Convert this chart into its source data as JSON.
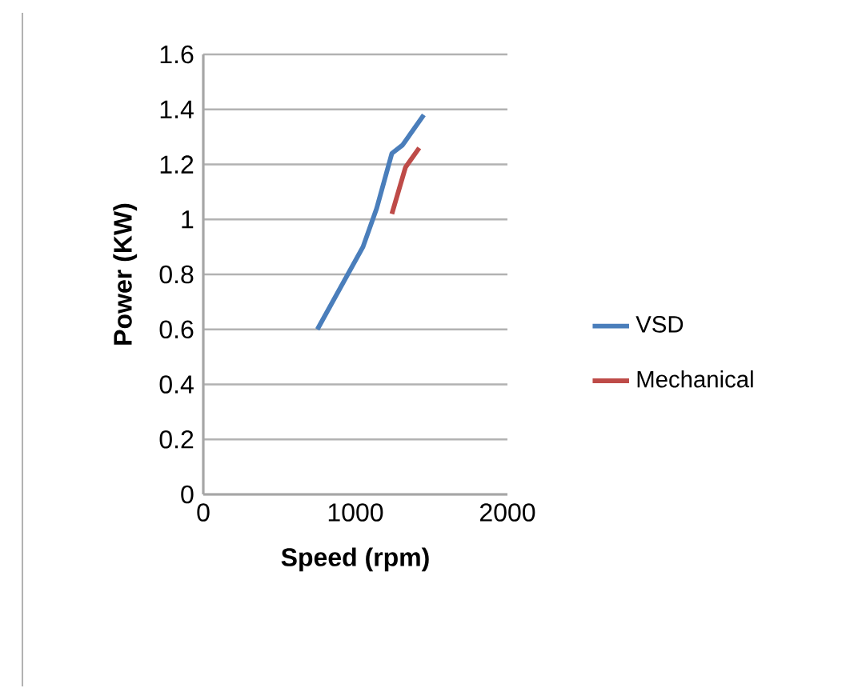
{
  "chart_data": {
    "type": "line",
    "xlabel": "Speed (rpm)",
    "ylabel": "Power (KW)",
    "xlim": [
      0,
      2000
    ],
    "xticks": [
      0,
      1000,
      2000
    ],
    "ylim": [
      0,
      1.6
    ],
    "yticks": [
      0,
      0.2,
      0.4,
      0.6,
      0.8,
      1,
      1.2,
      1.4,
      1.6
    ],
    "grid": "y",
    "legend": "right",
    "marker": "none",
    "line_style": "solid",
    "series": [
      {
        "name": "VSD",
        "color": "#4a7ebb",
        "x": [
          750,
          980,
          1050,
          1140,
          1240,
          1310,
          1450
        ],
        "values": [
          0.6,
          0.83,
          0.9,
          1.04,
          1.24,
          1.27,
          1.38
        ]
      },
      {
        "name": "Mechanical",
        "color": "#be4b48",
        "x": [
          1240,
          1330,
          1420
        ],
        "values": [
          1.02,
          1.19,
          1.26
        ]
      }
    ]
  }
}
